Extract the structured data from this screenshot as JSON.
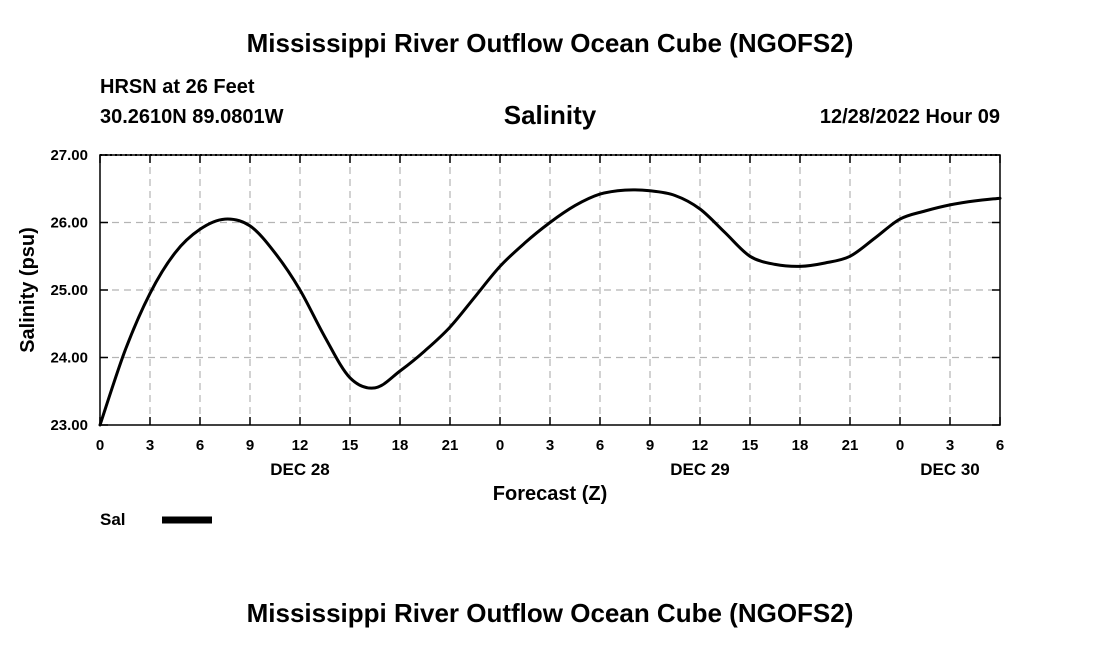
{
  "header": {
    "main_title": "Mississippi River Outflow Ocean Cube (NGOFS2)",
    "station": "HRSN at 26 Feet",
    "coords": "30.2610N  89.0801W",
    "variable": "Salinity",
    "datetime": "12/28/2022 Hour 09"
  },
  "footer": {
    "title": "Mississippi River Outflow Ocean Cube (NGOFS2)"
  },
  "chart_data": {
    "type": "line",
    "title": "Salinity",
    "xlabel": "Forecast (Z)",
    "ylabel": "Salinity (psu)",
    "ylim": [
      23.0,
      27.0
    ],
    "xlim": [
      0,
      54
    ],
    "grid": true,
    "y_ticks": [
      "23.00",
      "24.00",
      "25.00",
      "26.00",
      "27.00"
    ],
    "y_tick_values": [
      23,
      24,
      25,
      26,
      27
    ],
    "x_tick_values": [
      0,
      3,
      6,
      9,
      12,
      15,
      18,
      21,
      24,
      27,
      30,
      33,
      36,
      39,
      42,
      45,
      48,
      51,
      54
    ],
    "x_tick_labels": [
      "0",
      "3",
      "6",
      "9",
      "12",
      "15",
      "18",
      "21",
      "0",
      "3",
      "6",
      "9",
      "12",
      "15",
      "18",
      "21",
      "0",
      "3",
      "6"
    ],
    "date_labels": [
      {
        "hour": 12,
        "label": "DEC 28"
      },
      {
        "hour": 36,
        "label": "DEC 29"
      },
      {
        "hour": 51,
        "label": "DEC 30"
      }
    ],
    "legend": {
      "label": "Sal",
      "placement": "bottom-left"
    },
    "series": [
      {
        "name": "Sal",
        "x": [
          0,
          1.5,
          3,
          4.5,
          6,
          7.5,
          9,
          10.5,
          12,
          13.5,
          15,
          16.5,
          18,
          19.5,
          21,
          22.5,
          24,
          25.5,
          27,
          28.5,
          30,
          31.5,
          33,
          34.5,
          36,
          37.5,
          39,
          40.5,
          42,
          43.5,
          45,
          46.5,
          48,
          49.5,
          51,
          52.5,
          54
        ],
        "values": [
          23.0,
          24.1,
          24.95,
          25.55,
          25.9,
          26.05,
          25.95,
          25.55,
          25.0,
          24.3,
          23.7,
          23.55,
          23.8,
          24.1,
          24.45,
          24.9,
          25.35,
          25.7,
          26.0,
          26.25,
          26.42,
          26.48,
          26.47,
          26.4,
          26.2,
          25.85,
          25.5,
          25.38,
          25.35,
          25.4,
          25.5,
          25.77,
          26.05,
          26.17,
          26.26,
          26.32,
          26.36
        ]
      }
    ]
  }
}
